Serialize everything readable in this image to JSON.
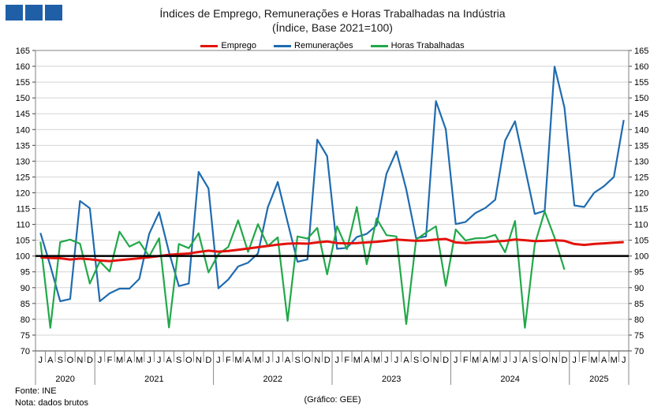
{
  "header": {
    "title_line1": "Índices de Emprego, Remunerações e Horas Trabalhadas na Indústria",
    "title_line2": "(Índice, Base 2021=100)"
  },
  "footer": {
    "source": "Fonte: INE",
    "note": "Nota: dados brutos",
    "credit": "(Gráfico: GEE)"
  },
  "chart_data": {
    "type": "line",
    "title": "Índices de Emprego, Remunerações e Horas Trabalhadas na Indústria",
    "subtitle": "(Índice, Base 2021=100)",
    "ylim": [
      70,
      165
    ],
    "yticks": [
      70,
      75,
      80,
      85,
      90,
      95,
      100,
      105,
      110,
      115,
      120,
      125,
      130,
      135,
      140,
      145,
      150,
      155,
      160,
      165
    ],
    "y2ticks": [
      70,
      75,
      80,
      85,
      90,
      95,
      100,
      105,
      110,
      115,
      120,
      125,
      130,
      135,
      140,
      145,
      150,
      155,
      160,
      165
    ],
    "reference_line": 100,
    "legend_position": "top",
    "grid": true,
    "x": [
      "J",
      "A",
      "S",
      "O",
      "N",
      "D",
      "J",
      "F",
      "M",
      "A",
      "M",
      "J",
      "J",
      "A",
      "S",
      "O",
      "N",
      "D",
      "J",
      "F",
      "M",
      "A",
      "M",
      "J",
      "J",
      "A",
      "S",
      "O",
      "N",
      "D",
      "J",
      "F",
      "M",
      "A",
      "M",
      "J",
      "J",
      "A",
      "S",
      "O",
      "N",
      "D",
      "J",
      "F",
      "M",
      "A",
      "M",
      "J",
      "J",
      "A",
      "S",
      "O",
      "N",
      "D",
      "J",
      "F",
      "M",
      "A",
      "M",
      "J"
    ],
    "years": [
      {
        "label": "2020",
        "start": 0,
        "end": 5
      },
      {
        "label": "2021",
        "start": 6,
        "end": 17
      },
      {
        "label": "2022",
        "start": 18,
        "end": 29
      },
      {
        "label": "2023",
        "start": 30,
        "end": 41
      },
      {
        "label": "2024",
        "start": 42,
        "end": 53
      },
      {
        "label": "2025",
        "start": 54,
        "end": 59
      }
    ],
    "series": [
      {
        "name": "Emprego",
        "color": "#e3120b",
        "values": [
          99.6,
          99.4,
          99.3,
          98.9,
          99.2,
          99.0,
          98.6,
          98.4,
          98.7,
          99.0,
          99.3,
          99.6,
          100.0,
          100.4,
          100.6,
          100.8,
          101.3,
          101.7,
          101.4,
          101.6,
          102.0,
          102.4,
          102.8,
          103.2,
          103.6,
          103.9,
          104.0,
          103.9,
          104.3,
          104.6,
          104.1,
          104.0,
          104.1,
          104.3,
          104.5,
          104.8,
          105.2,
          105.0,
          104.8,
          104.9,
          105.2,
          105.4,
          104.3,
          104.1,
          104.3,
          104.4,
          104.6,
          104.8,
          105.2,
          105.0,
          104.7,
          104.8,
          105.0,
          104.8,
          103.8,
          103.5,
          103.8,
          104.0,
          104.2,
          104.4
        ]
      },
      {
        "name": "Remunerações",
        "color": "#1f6bb0",
        "values": [
          107.3,
          96.9,
          85.7,
          86.4,
          117.4,
          115.1,
          85.7,
          88.2,
          89.7,
          89.7,
          92.8,
          107.0,
          113.8,
          101.3,
          90.5,
          91.3,
          126.6,
          121.4,
          89.8,
          92.6,
          96.7,
          97.9,
          100.8,
          115.4,
          123.4,
          110.7,
          98.2,
          98.9,
          136.8,
          131.6,
          102.3,
          102.6,
          106.0,
          107.0,
          109.7,
          126.0,
          133.1,
          121.1,
          105.6,
          106.2,
          149.0,
          140.1,
          110.1,
          110.8,
          113.6,
          115.2,
          117.8,
          136.5,
          142.6,
          128.0,
          113.3,
          114.3,
          159.9,
          147.0,
          116.0,
          115.5,
          120.0,
          122.1,
          125.0,
          143.0
        ]
      },
      {
        "name": "Horas Trabalhadas",
        "color": "#22a84a",
        "values": [
          104.5,
          77.3,
          104.4,
          105.2,
          103.9,
          91.3,
          98.3,
          95.1,
          107.7,
          103.0,
          104.5,
          99.9,
          105.6,
          77.4,
          103.8,
          102.5,
          107.2,
          94.8,
          100.6,
          102.9,
          111.3,
          101.3,
          110.1,
          103.2,
          105.9,
          79.5,
          106.2,
          105.5,
          108.9,
          94.2,
          109.4,
          102.2,
          115.5,
          97.4,
          111.9,
          106.6,
          106.2,
          78.5,
          105.2,
          107.4,
          109.4,
          90.6,
          108.4,
          104.9,
          105.6,
          105.7,
          106.7,
          101.2,
          111.1,
          77.3,
          103.7,
          114.1,
          105.8,
          95.7,
          null,
          null,
          null,
          null,
          null,
          null
        ]
      }
    ]
  }
}
